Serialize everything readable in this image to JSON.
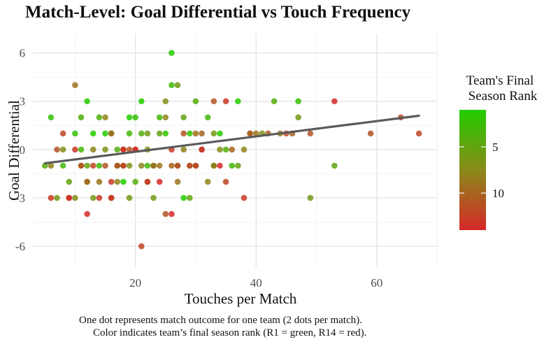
{
  "chart_data": {
    "type": "scatter",
    "title": "Match-Level: Goal Differential vs Touch Frequency",
    "xlabel": "Touches per Match",
    "ylabel": "Goal Differential",
    "xlim": [
      3,
      70
    ],
    "ylim": [
      -7.3,
      7.2
    ],
    "x_ticks": [
      20,
      40,
      60
    ],
    "y_ticks": [
      -6,
      -3,
      0,
      3,
      6
    ],
    "grid": true,
    "legend": {
      "title_line1": "Team's Final",
      "title_line2": "Season Rank",
      "ticks": [
        5,
        10
      ],
      "range": [
        1,
        14
      ],
      "colors": {
        "low_rank": "#22cc00",
        "mid_rank": "#8a8a1a",
        "high_rank": "#d62828"
      },
      "placement": "right"
    },
    "trend": {
      "x": [
        5,
        67
      ],
      "y": [
        -0.85,
        2.1
      ],
      "color": "#5a5a5a"
    },
    "series": [
      {
        "rank": 1,
        "points": [
          [
            12,
            3
          ],
          [
            15,
            1
          ],
          [
            18,
            -2
          ],
          [
            21,
            3
          ],
          [
            26,
            6
          ],
          [
            28,
            -3
          ],
          [
            34,
            1
          ],
          [
            37,
            3
          ],
          [
            13,
            1
          ],
          [
            19,
            2
          ]
        ]
      },
      {
        "rank": 2,
        "points": [
          [
            6,
            2
          ],
          [
            10,
            1
          ],
          [
            16,
            1
          ],
          [
            20,
            2
          ],
          [
            25,
            1
          ],
          [
            29,
            1
          ],
          [
            33,
            -1
          ],
          [
            47,
            3
          ],
          [
            23,
            -1
          ],
          [
            17,
            -1
          ]
        ]
      },
      {
        "rank": 3,
        "points": [
          [
            8,
            -1
          ],
          [
            14,
            -1
          ],
          [
            19,
            1
          ],
          [
            22,
            -1
          ],
          [
            26,
            4
          ],
          [
            30,
            -1
          ],
          [
            32,
            2
          ],
          [
            36,
            -1
          ],
          [
            11,
            0
          ],
          [
            24,
            2
          ]
        ]
      },
      {
        "rank": 4,
        "points": [
          [
            5,
            -1
          ],
          [
            11,
            2
          ],
          [
            17,
            0
          ],
          [
            21,
            1
          ],
          [
            27,
            -1
          ],
          [
            30,
            3
          ],
          [
            35,
            0
          ],
          [
            43,
            3
          ],
          [
            14,
            2
          ],
          [
            20,
            -2
          ]
        ]
      },
      {
        "rank": 5,
        "points": [
          [
            9,
            -2
          ],
          [
            12,
            -1
          ],
          [
            18,
            -1
          ],
          [
            24,
            1
          ],
          [
            28,
            2
          ],
          [
            31,
            0
          ],
          [
            37,
            -1
          ],
          [
            53,
            -1
          ],
          [
            16,
            -3
          ],
          [
            29,
            -3
          ]
        ]
      },
      {
        "rank": 6,
        "points": [
          [
            7,
            -3
          ],
          [
            13,
            -3
          ],
          [
            19,
            -3
          ],
          [
            23,
            -3
          ],
          [
            27,
            4
          ],
          [
            33,
            1
          ],
          [
            39,
            1
          ],
          [
            47,
            2
          ],
          [
            49,
            -3
          ],
          [
            22,
            1
          ]
        ]
      },
      {
        "rank": 7,
        "points": [
          [
            8,
            0
          ],
          [
            12,
            -2
          ],
          [
            15,
            0
          ],
          [
            22,
            0
          ],
          [
            25,
            3
          ],
          [
            29,
            -1
          ],
          [
            34,
            0
          ],
          [
            41,
            1
          ],
          [
            19,
            -1
          ],
          [
            10,
            -3
          ]
        ]
      },
      {
        "rank": 8,
        "points": [
          [
            6,
            -1
          ],
          [
            13,
            0
          ],
          [
            17,
            -2
          ],
          [
            21,
            -1
          ],
          [
            25,
            2
          ],
          [
            28,
            0
          ],
          [
            32,
            -2
          ],
          [
            38,
            0
          ],
          [
            44,
            1
          ],
          [
            15,
            2
          ]
        ]
      },
      {
        "rank": 9,
        "points": [
          [
            10,
            4
          ],
          [
            14,
            -2
          ],
          [
            18,
            0
          ],
          [
            22,
            -2
          ],
          [
            24,
            -1
          ],
          [
            30,
            1
          ],
          [
            33,
            -1
          ],
          [
            40,
            1
          ],
          [
            11,
            -1
          ],
          [
            27,
            -2
          ]
        ]
      },
      {
        "rank": 10,
        "points": [
          [
            9,
            -3
          ],
          [
            12,
            -2
          ],
          [
            16,
            1
          ],
          [
            20,
            0
          ],
          [
            23,
            -1
          ],
          [
            26,
            -1
          ],
          [
            31,
            1
          ],
          [
            36,
            0
          ],
          [
            42,
            1
          ],
          [
            46,
            1
          ]
        ]
      },
      {
        "rank": 11,
        "points": [
          [
            7,
            0
          ],
          [
            11,
            -1
          ],
          [
            15,
            -1
          ],
          [
            19,
            0
          ],
          [
            25,
            -4
          ],
          [
            28,
            1
          ],
          [
            33,
            3
          ],
          [
            39,
            1
          ],
          [
            49,
            1
          ],
          [
            59,
            1
          ]
        ]
      },
      {
        "rank": 12,
        "points": [
          [
            8,
            1
          ],
          [
            13,
            -1
          ],
          [
            17,
            -1
          ],
          [
            21,
            -6
          ],
          [
            27,
            -1
          ],
          [
            29,
            -1
          ],
          [
            35,
            -2
          ],
          [
            45,
            1
          ],
          [
            64,
            2
          ],
          [
            67,
            1
          ]
        ]
      },
      {
        "rank": 13,
        "points": [
          [
            6,
            -3
          ],
          [
            10,
            0
          ],
          [
            14,
            -3
          ],
          [
            18,
            -1
          ],
          [
            22,
            -2
          ],
          [
            26,
            0
          ],
          [
            30,
            -1
          ],
          [
            35,
            3
          ],
          [
            16,
            -2
          ],
          [
            38,
            -3
          ]
        ]
      },
      {
        "rank": 14,
        "points": [
          [
            9,
            -3
          ],
          [
            12,
            -4
          ],
          [
            16,
            -3
          ],
          [
            20,
            0
          ],
          [
            24,
            -2
          ],
          [
            26,
            -4
          ],
          [
            31,
            0
          ],
          [
            34,
            -1
          ],
          [
            53,
            3
          ],
          [
            18,
            0
          ]
        ]
      }
    ]
  },
  "caption": {
    "line1": "One dot represents match outcome for one team (2 dots per match).",
    "line2": "Color indicates team’s final season rank (R1 = green, R14 = red)."
  }
}
